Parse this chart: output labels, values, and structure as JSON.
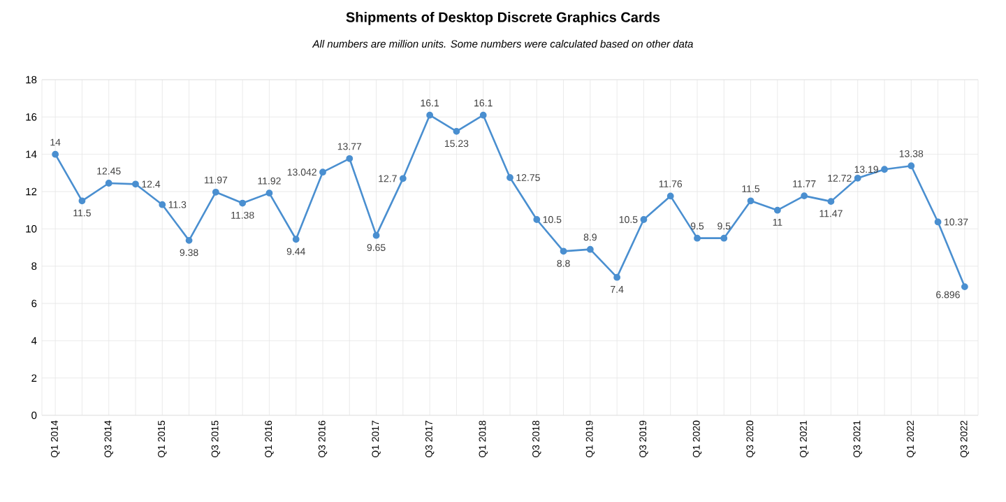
{
  "chart_data": {
    "type": "line",
    "title": "Shipments of Desktop Discrete Graphics Cards",
    "annotations": [
      "All numbers are million units. Some numbers were calculated based on other data"
    ],
    "categories": [
      "Q1 2014",
      null,
      "Q3 2014",
      null,
      "Q1 2015",
      null,
      "Q3 2015",
      null,
      "Q1 2016",
      null,
      "Q3 2016",
      null,
      "Q1 2017",
      null,
      "Q3 2017",
      null,
      "Q1 2018",
      null,
      "Q3 2018",
      null,
      "Q1 2019",
      null,
      "Q3 2019",
      null,
      "Q1 2020",
      null,
      "Q3 2020",
      null,
      "Q1 2021",
      null,
      "Q3 2021",
      null,
      "Q1 2022",
      null,
      "Q3 2022"
    ],
    "series": [
      {
        "color": "#4a8fd0",
        "values": [
          14,
          11.5,
          12.45,
          12.4,
          11.3,
          9.38,
          11.97,
          11.38,
          11.92,
          9.44,
          13.042,
          13.77,
          9.65,
          12.7,
          16.1,
          15.23,
          16.1,
          12.75,
          10.5,
          8.8,
          8.9,
          7.4,
          10.5,
          11.76,
          9.5,
          9.5,
          11.5,
          11,
          11.77,
          11.47,
          12.72,
          13.19,
          13.38,
          10.37,
          6.896
        ]
      }
    ],
    "ylim": [
      0,
      18
    ],
    "yticks": [
      0,
      2,
      4,
      6,
      8,
      10,
      12,
      14,
      16,
      18
    ],
    "grid": true,
    "marker": "circle",
    "line_style": "solid",
    "data_labels": true
  }
}
